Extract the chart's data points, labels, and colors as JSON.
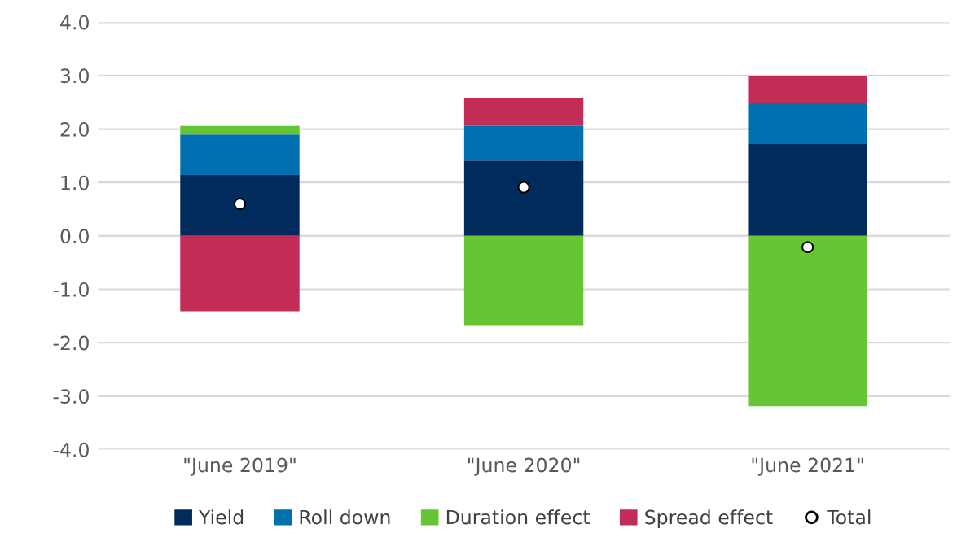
{
  "chart_data": {
    "type": "bar",
    "stacked": true,
    "categories": [
      "\"June 2019\"",
      "\"June 2020\"",
      "\"June 2021\""
    ],
    "series": [
      {
        "name": "Yield",
        "color": "#002b5c",
        "values": [
          1.14,
          1.41,
          1.73
        ]
      },
      {
        "name": "Roll down",
        "color": "#0070b0",
        "values": [
          0.76,
          0.65,
          0.76
        ]
      },
      {
        "name": "Duration effect",
        "color": "#66c533",
        "values": [
          0.16,
          -1.67,
          -3.19
        ]
      },
      {
        "name": "Spread effect",
        "color": "#c22d58",
        "values": [
          -1.41,
          0.52,
          0.51
        ]
      },
      {
        "name": "Total",
        "type": "scatter",
        "marker": "circle",
        "color": "#ffffff",
        "x": [
          "\"June 2019\"",
          "\"June 2020\"",
          "\"June 2021\""
        ],
        "values": [
          0.6,
          0.91,
          -0.21
        ]
      }
    ],
    "ylim": [
      -4,
      4
    ],
    "yticks": [
      {
        "value": -4,
        "label": "-4.0"
      },
      {
        "value": -3,
        "label": "-3.0"
      },
      {
        "value": -2,
        "label": "-2.0"
      },
      {
        "value": -1,
        "label": "-1.0"
      },
      {
        "value": 0,
        "label": "0.0"
      },
      {
        "value": 1,
        "label": "1.0"
      },
      {
        "value": 2,
        "label": "2.0"
      },
      {
        "value": 3,
        "label": "3.0"
      },
      {
        "value": 4,
        "label": "4.0"
      }
    ],
    "grid": "y",
    "legend": "bottom"
  }
}
